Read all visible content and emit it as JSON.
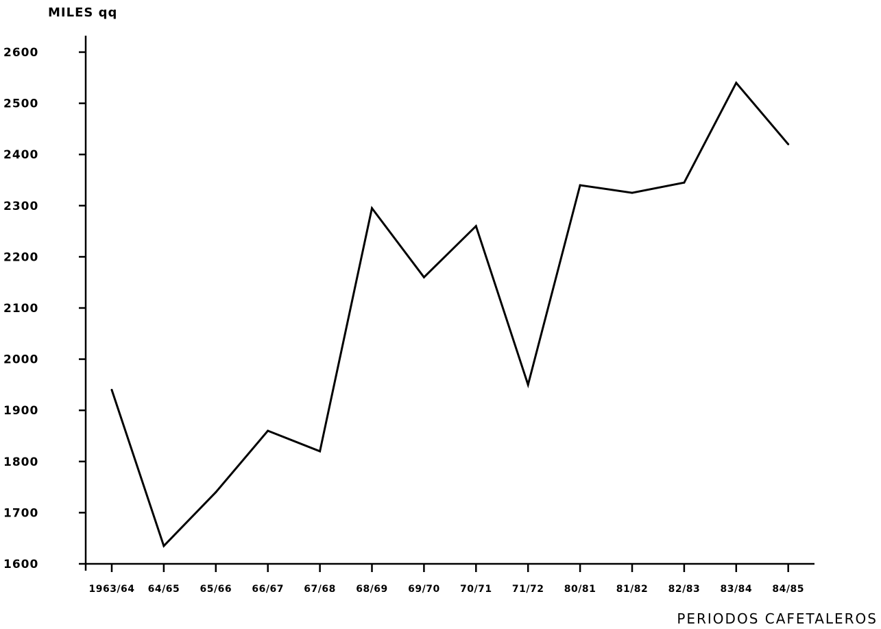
{
  "chart_data": {
    "type": "line",
    "title": "",
    "xlabel": "PERIODOS CAFETALEROS",
    "ylabel": "MILES qq",
    "categories": [
      "1963/64",
      "64/65",
      "65/66",
      "66/67",
      "67/68",
      "68/69",
      "69/70",
      "70/71",
      "71/72",
      "80/81",
      "81/82",
      "82/83",
      "83/84",
      "84/85"
    ],
    "y_ticks": [
      1600,
      1700,
      1800,
      1900,
      2000,
      2100,
      2200,
      2300,
      2400,
      2500,
      2600
    ],
    "ylim": [
      1600,
      2600
    ],
    "grid": false,
    "legend": "none",
    "series": [
      {
        "values": [
          1940,
          1635,
          1740,
          1860,
          1820,
          2295,
          2160,
          2260,
          1950,
          2340,
          2325,
          2345,
          2540,
          2420
        ]
      }
    ],
    "colors": {
      "line": "#000000",
      "axis": "#000000",
      "background": "#ffffff"
    }
  }
}
